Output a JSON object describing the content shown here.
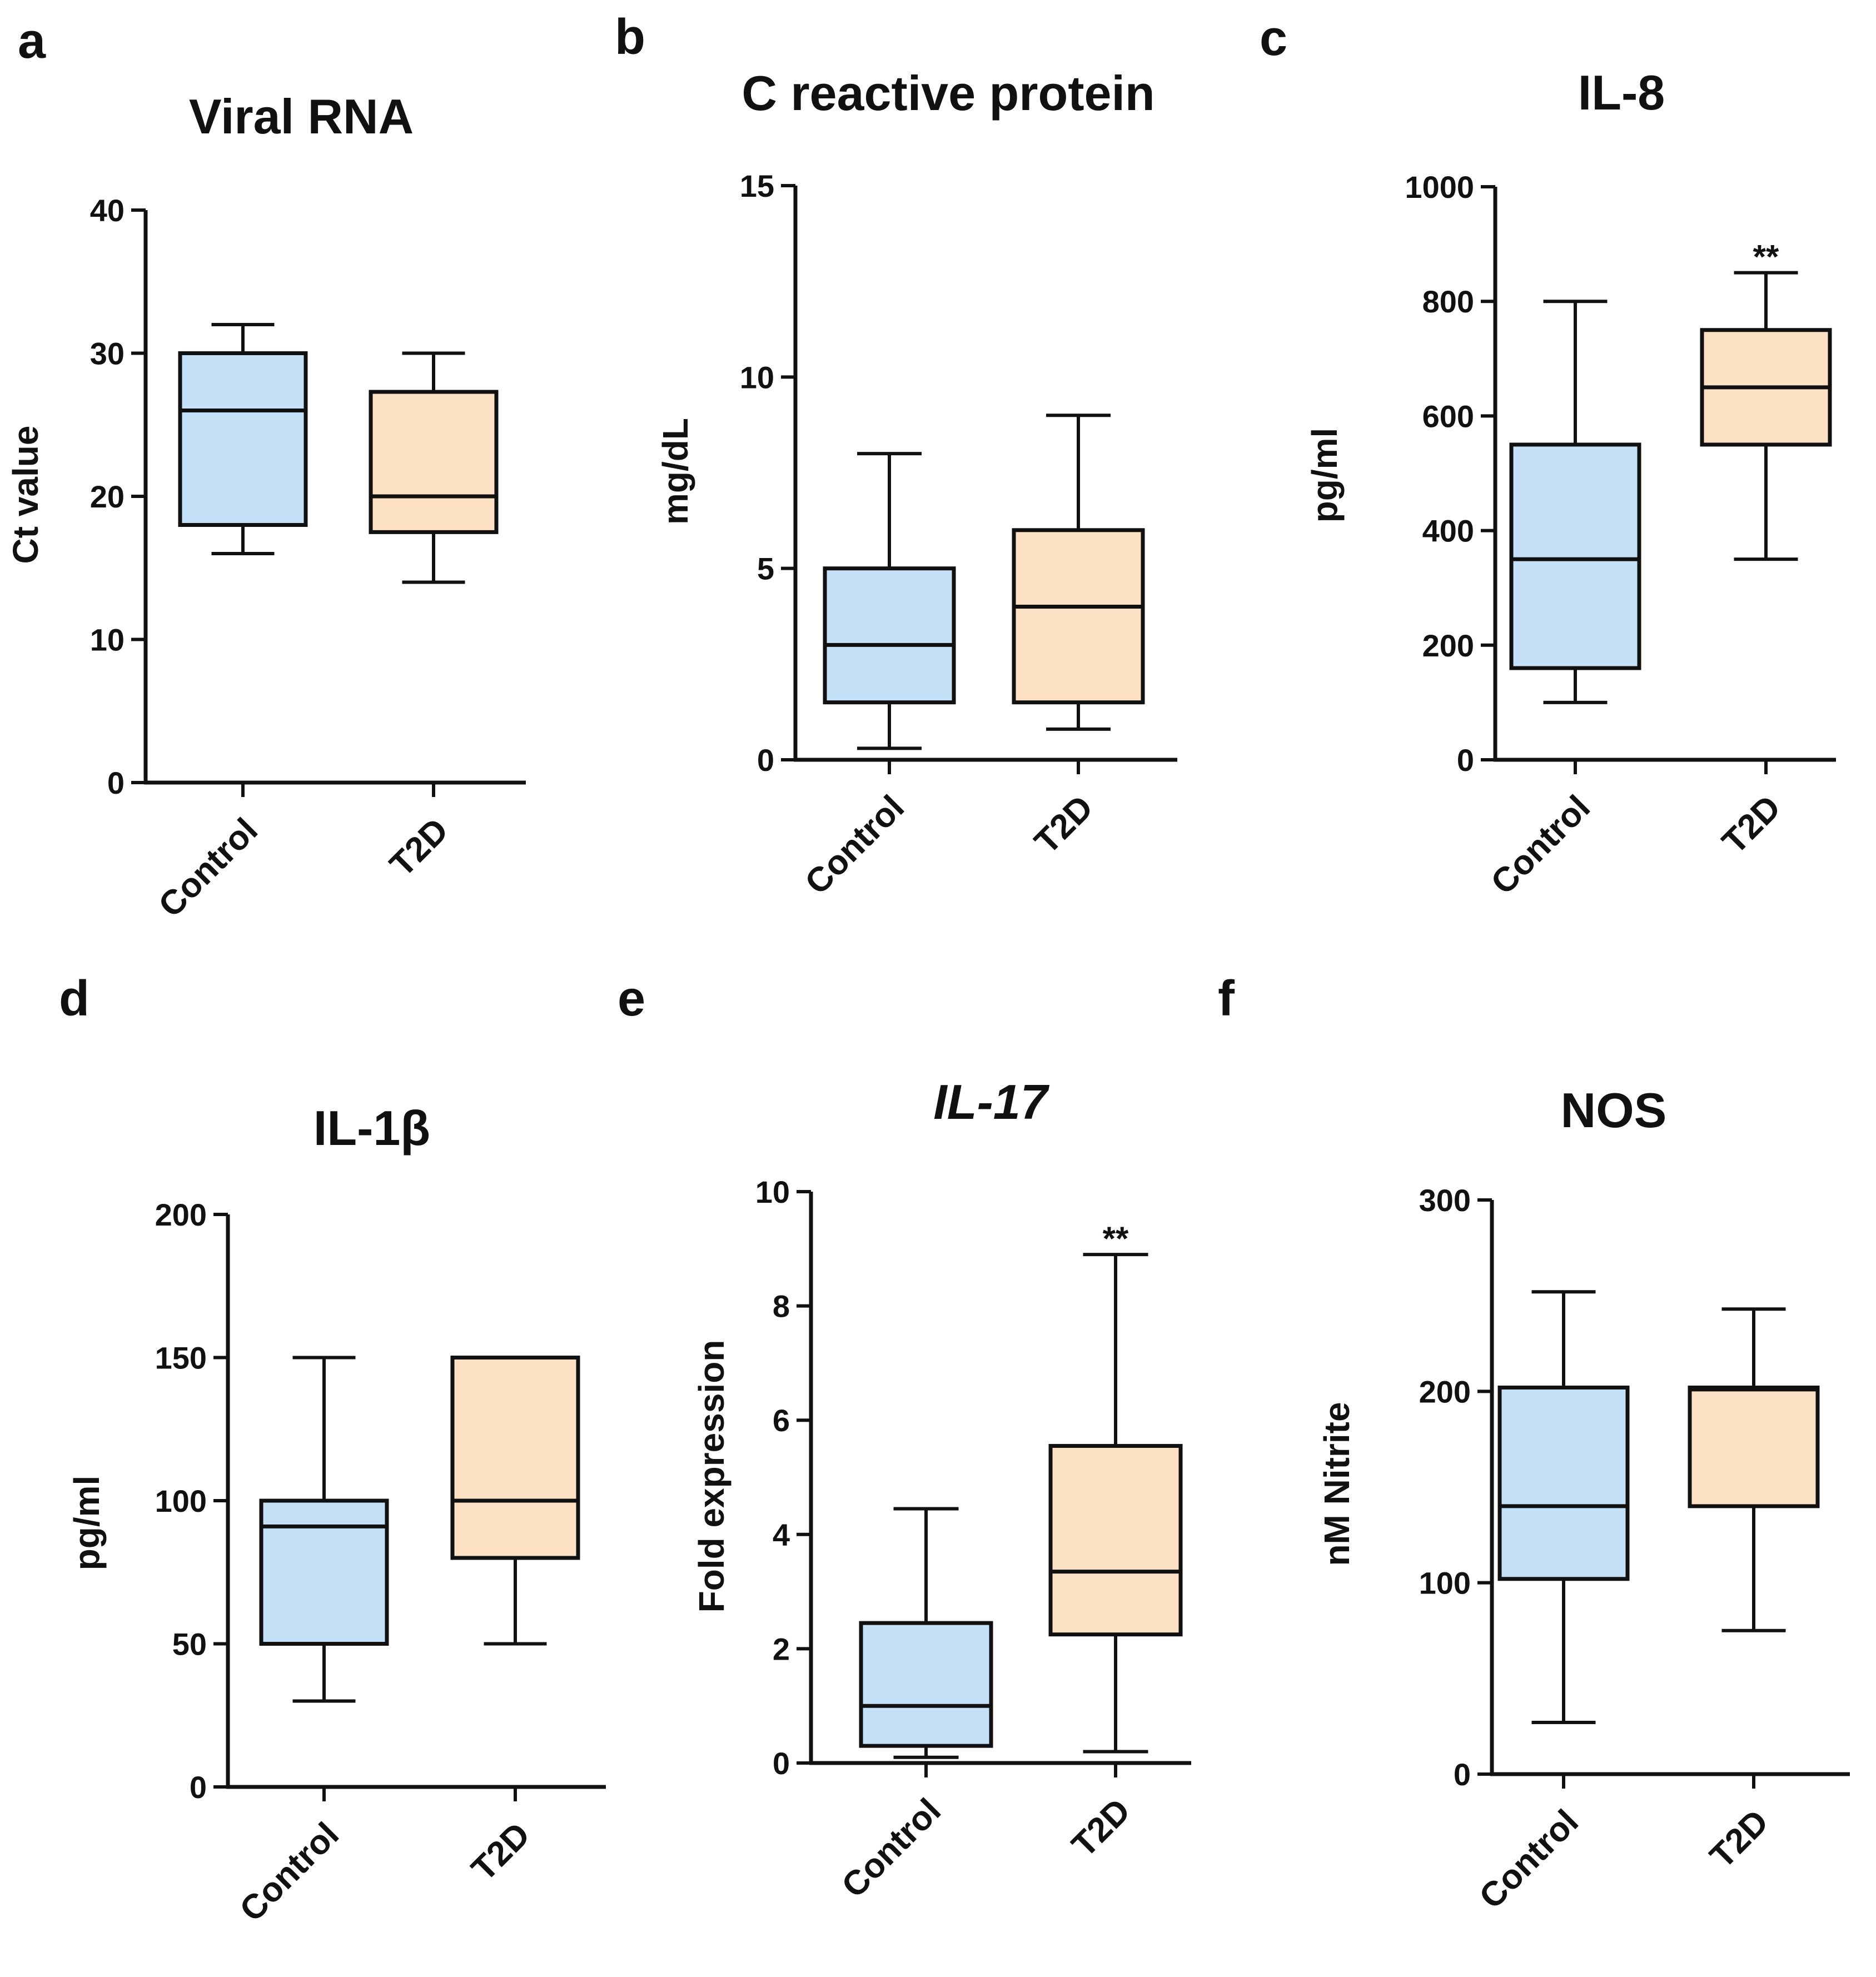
{
  "colors": {
    "control": "#c4e1f8",
    "t2d": "#fde1c4",
    "stroke": "#111111"
  },
  "chart_data": [
    {
      "letter": "a",
      "type": "box",
      "title": "Viral RNA",
      "title_italic": false,
      "ylabel": "Ct value",
      "ylim": [
        0,
        40
      ],
      "yticks": [
        "0",
        "10",
        "20",
        "30",
        "40"
      ],
      "tick_values": [
        0,
        10,
        20,
        30,
        40
      ],
      "categories": [
        "Control",
        "T2D"
      ],
      "boxes": [
        {
          "min": 16,
          "q1": 18,
          "median": 26,
          "q3": 30,
          "max": 32
        },
        {
          "min": 14,
          "q1": 17.5,
          "median": 20,
          "q3": 27.3,
          "max": 30
        }
      ],
      "significance": [
        "",
        ""
      ]
    },
    {
      "letter": "b",
      "type": "box",
      "title": "C reactive protein",
      "title_italic": false,
      "ylabel": "mg/dL",
      "ylim": [
        0,
        15
      ],
      "yticks": [
        "0",
        "5",
        "10",
        "15"
      ],
      "tick_values": [
        0,
        5,
        10,
        15
      ],
      "categories": [
        "Control",
        "T2D"
      ],
      "boxes": [
        {
          "min": 0.3,
          "q1": 1.5,
          "median": 3,
          "q3": 5,
          "max": 8
        },
        {
          "min": 0.8,
          "q1": 1.5,
          "median": 4,
          "q3": 6,
          "max": 9
        }
      ],
      "significance": [
        "",
        ""
      ]
    },
    {
      "letter": "c",
      "type": "box",
      "title": "IL-8",
      "title_italic": false,
      "ylabel": "pg/ml",
      "ylim": [
        0,
        1000
      ],
      "yticks": [
        "0",
        "200",
        "400",
        "600",
        "800",
        "1000"
      ],
      "tick_values": [
        0,
        200,
        400,
        600,
        800,
        1000
      ],
      "categories": [
        "Control",
        "T2D"
      ],
      "boxes": [
        {
          "min": 100,
          "q1": 160,
          "median": 350,
          "q3": 550,
          "max": 800
        },
        {
          "min": 350,
          "q1": 550,
          "median": 650,
          "q3": 750,
          "max": 850
        }
      ],
      "significance": [
        "",
        "**"
      ]
    },
    {
      "letter": "d",
      "type": "box",
      "title": "IL-1β",
      "title_italic": false,
      "ylabel": "pg/ml",
      "ylim": [
        0,
        200
      ],
      "yticks": [
        "0",
        "50",
        "100",
        "150",
        "200"
      ],
      "tick_values": [
        0,
        50,
        100,
        150,
        200
      ],
      "categories": [
        "Control",
        "T2D"
      ],
      "boxes": [
        {
          "min": 30,
          "q1": 50,
          "median": 91,
          "q3": 100,
          "max": 150
        },
        {
          "min": 50,
          "q1": 80,
          "median": 100,
          "q3": 150,
          "max": 150
        }
      ],
      "significance": [
        "",
        ""
      ]
    },
    {
      "letter": "e",
      "type": "box",
      "title": "IL-17",
      "title_italic": true,
      "ylabel": "Fold expression",
      "ylim": [
        0,
        10
      ],
      "yticks": [
        "0",
        "2",
        "4",
        "6",
        "8",
        "10"
      ],
      "tick_values": [
        0,
        2,
        4,
        6,
        8,
        10
      ],
      "categories": [
        "Control",
        "T2D"
      ],
      "boxes": [
        {
          "min": 0.1,
          "q1": 0.3,
          "median": 1.0,
          "q3": 2.45,
          "max": 4.45
        },
        {
          "min": 0.2,
          "q1": 2.25,
          "median": 3.35,
          "q3": 5.55,
          "max": 8.9
        }
      ],
      "significance": [
        "",
        "**"
      ]
    },
    {
      "letter": "f",
      "type": "box",
      "title": "NOS",
      "title_italic": false,
      "ylabel": "nM Nitrite",
      "ylim": [
        0,
        300
      ],
      "yticks": [
        "0",
        "100",
        "200",
        "300"
      ],
      "tick_values": [
        0,
        100,
        200,
        300
      ],
      "categories": [
        "Control",
        "T2D"
      ],
      "boxes": [
        {
          "min": 27,
          "q1": 102,
          "median": 140,
          "q3": 202,
          "max": 252
        },
        {
          "min": 75,
          "q1": 140,
          "median": 201,
          "q3": 202,
          "max": 243
        }
      ],
      "significance": [
        "",
        ""
      ]
    }
  ]
}
